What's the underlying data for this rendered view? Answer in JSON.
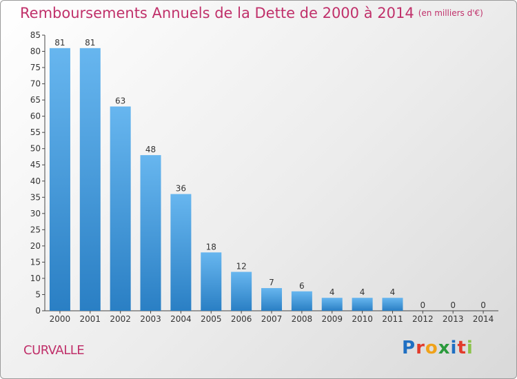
{
  "title": "Remboursements Annuels de la Dette de 2000 à 2014",
  "unit_note": "(en milliers d'€)",
  "commune": "CURVALLE",
  "logo_text": "Proxiti",
  "colors": {
    "title": "#c0306a",
    "bar_light": "#67b6ef",
    "bar_dark": "#2a7fc4"
  },
  "chart_data": {
    "type": "bar",
    "title": "Remboursements Annuels de la Dette de 2000 à 2014",
    "xlabel": "",
    "ylabel": "",
    "categories": [
      "2000",
      "2001",
      "2002",
      "2003",
      "2004",
      "2005",
      "2006",
      "2007",
      "2008",
      "2009",
      "2010",
      "2011",
      "2012",
      "2013",
      "2014"
    ],
    "values": [
      81,
      81,
      63,
      48,
      36,
      18,
      12,
      7,
      6,
      4,
      4,
      4,
      0,
      0,
      0
    ],
    "ylim": [
      0,
      85
    ],
    "yticks": [
      0,
      5,
      10,
      15,
      20,
      25,
      30,
      35,
      40,
      45,
      50,
      55,
      60,
      65,
      70,
      75,
      80,
      85
    ],
    "grid": false,
    "data_labels": true
  }
}
